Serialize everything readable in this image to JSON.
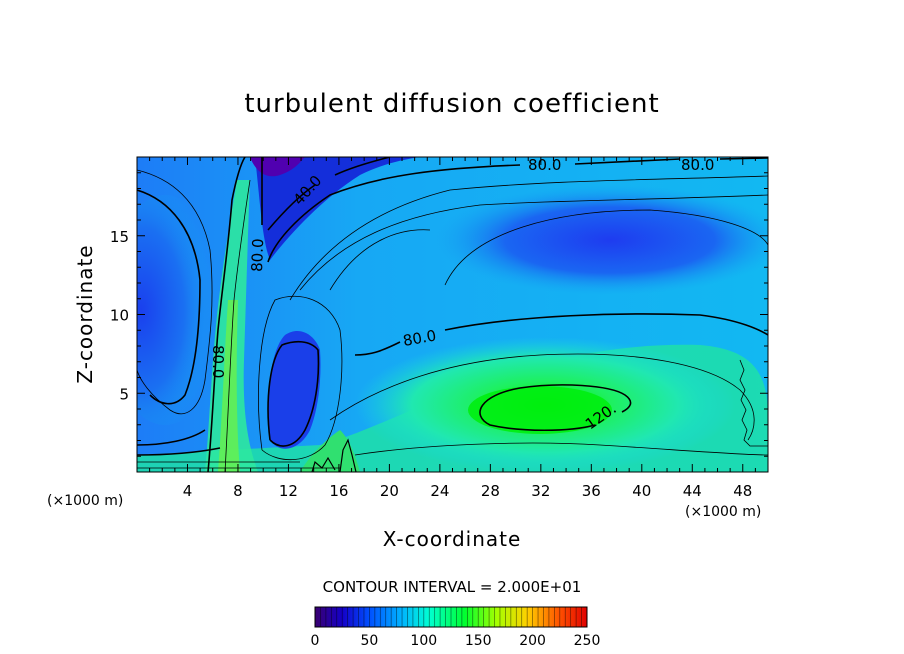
{
  "chart_data": {
    "type": "heatmap",
    "title": "turbulent diffusion coefficient",
    "xlabel": "X-coordinate",
    "ylabel": "Z-coordinate",
    "x_unit": "(×1000 m)",
    "z_unit": "(×1000 m)",
    "xlim": [
      0,
      50
    ],
    "ylim": [
      0,
      20
    ],
    "x_ticks": [
      4,
      8,
      12,
      16,
      20,
      24,
      28,
      32,
      36,
      40,
      44,
      48
    ],
    "y_ticks": [
      5,
      10,
      15
    ],
    "contour_interval_text": "CONTOUR INTERVAL = 2.000E+01",
    "contour_interval": 20,
    "colorbar": {
      "range": [
        0,
        250
      ],
      "ticks": [
        0,
        50,
        100,
        150,
        200,
        250
      ],
      "colors": [
        "#3a0070",
        "#1400c8",
        "#0050ff",
        "#00b4ff",
        "#00ffd2",
        "#00ff30",
        "#a8ff00",
        "#ffd000",
        "#ff5000",
        "#e00000"
      ]
    },
    "contour_labels": [
      {
        "text": "80.0",
        "x": 25.3,
        "z": 19.2
      },
      {
        "text": "80.0",
        "x": 42.5,
        "z": 19.2
      },
      {
        "text": "40.0",
        "x": 13.8,
        "z": 17.4
      },
      {
        "text": "80.0",
        "x": 9.5,
        "z": 14.2
      },
      {
        "text": "80.0",
        "x": 21.9,
        "z": 8.6
      },
      {
        "text": "80.0",
        "x": 6.3,
        "z": 7.0
      },
      {
        "text": "120.",
        "x": 37.6,
        "z": 3.6
      }
    ],
    "features": [
      {
        "kind": "maximum",
        "value_range": [
          120,
          140
        ],
        "x": 32,
        "z": 3.8
      },
      {
        "kind": "minimum",
        "value_range": [
          0,
          40
        ],
        "x": 12,
        "z": 19.5
      },
      {
        "kind": "minimum",
        "value_range": [
          20,
          60
        ],
        "x": 12.5,
        "z": 5
      }
    ]
  }
}
